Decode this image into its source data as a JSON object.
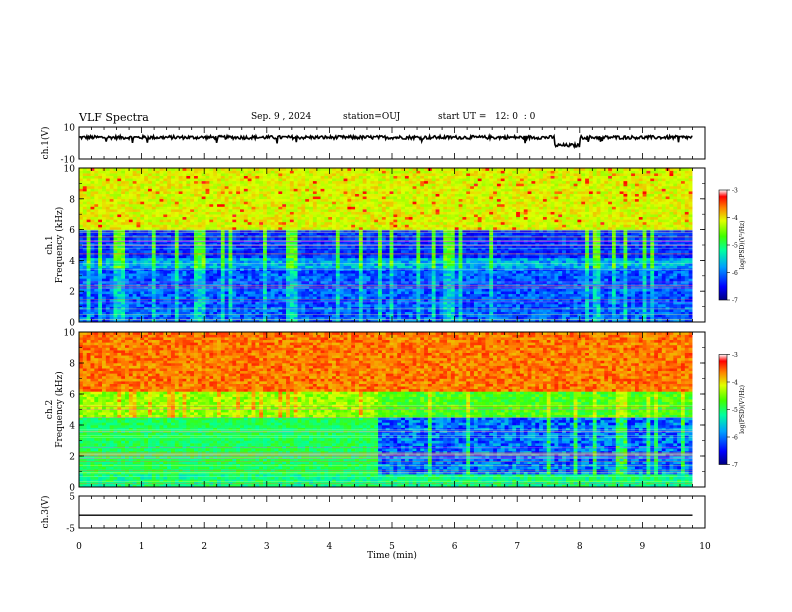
{
  "header": {
    "title": "VLF Spectra",
    "date": "Sep. 9 , 2024",
    "station": "station=OUJ",
    "start_ut": "start UT =   12: 0  : 0"
  },
  "chart_data": [
    {
      "type": "line",
      "panel": "ch1-waveform",
      "ylabel": "ch.1(V)",
      "ylim": [
        -10,
        10
      ],
      "yticks": [
        "10",
        "-10"
      ],
      "xlim": [
        0,
        10
      ],
      "series": [
        {
          "x": [
            0,
            2,
            4,
            6,
            7.5,
            7.6,
            8,
            9.8
          ],
          "values": [
            3.5,
            3.5,
            3.5,
            3.5,
            3.5,
            -1.5,
            3.5,
            3.5
          ]
        }
      ]
    },
    {
      "type": "heatmap",
      "panel": "ch1-spectrogram",
      "ylabel": "ch.1 Frequency (kHz)",
      "ylim": [
        0,
        10
      ],
      "yticks": [
        "0",
        "2",
        "4",
        "6",
        "8",
        "10"
      ],
      "xlim": [
        0,
        10
      ],
      "data_xmax": 9.8,
      "colorbar": {
        "label": "log(PSD)(V²/Hz)",
        "range": [
          -7,
          -3
        ],
        "ticks": [
          "-3",
          "-4",
          "-5",
          "-6",
          "-7"
        ]
      }
    },
    {
      "type": "heatmap",
      "panel": "ch2-spectrogram",
      "ylabel": "ch.2 Frequency (kHz)",
      "ylim": [
        0,
        10
      ],
      "yticks": [
        "0",
        "2",
        "4",
        "6",
        "8",
        "10"
      ],
      "xlim": [
        0,
        10
      ],
      "data_xmax": 9.8,
      "colorbar": {
        "label": "log(PSD)(V²/Hz)",
        "range": [
          -7,
          -3
        ],
        "ticks": [
          "-3",
          "-4",
          "-5",
          "-6",
          "-7"
        ]
      }
    },
    {
      "type": "line",
      "panel": "ch3-waveform",
      "ylabel": "ch.3(V)",
      "ylim": [
        -5,
        5
      ],
      "yticks": [
        "5",
        "-5"
      ],
      "xlim": [
        0,
        10
      ],
      "xlabel": "Time (min)",
      "xticks": [
        "0",
        "1",
        "2",
        "3",
        "4",
        "5",
        "6",
        "7",
        "8",
        "9",
        "10"
      ],
      "series": [
        {
          "x": [
            0,
            9.8
          ],
          "values": [
            -1,
            -1
          ]
        }
      ]
    }
  ]
}
